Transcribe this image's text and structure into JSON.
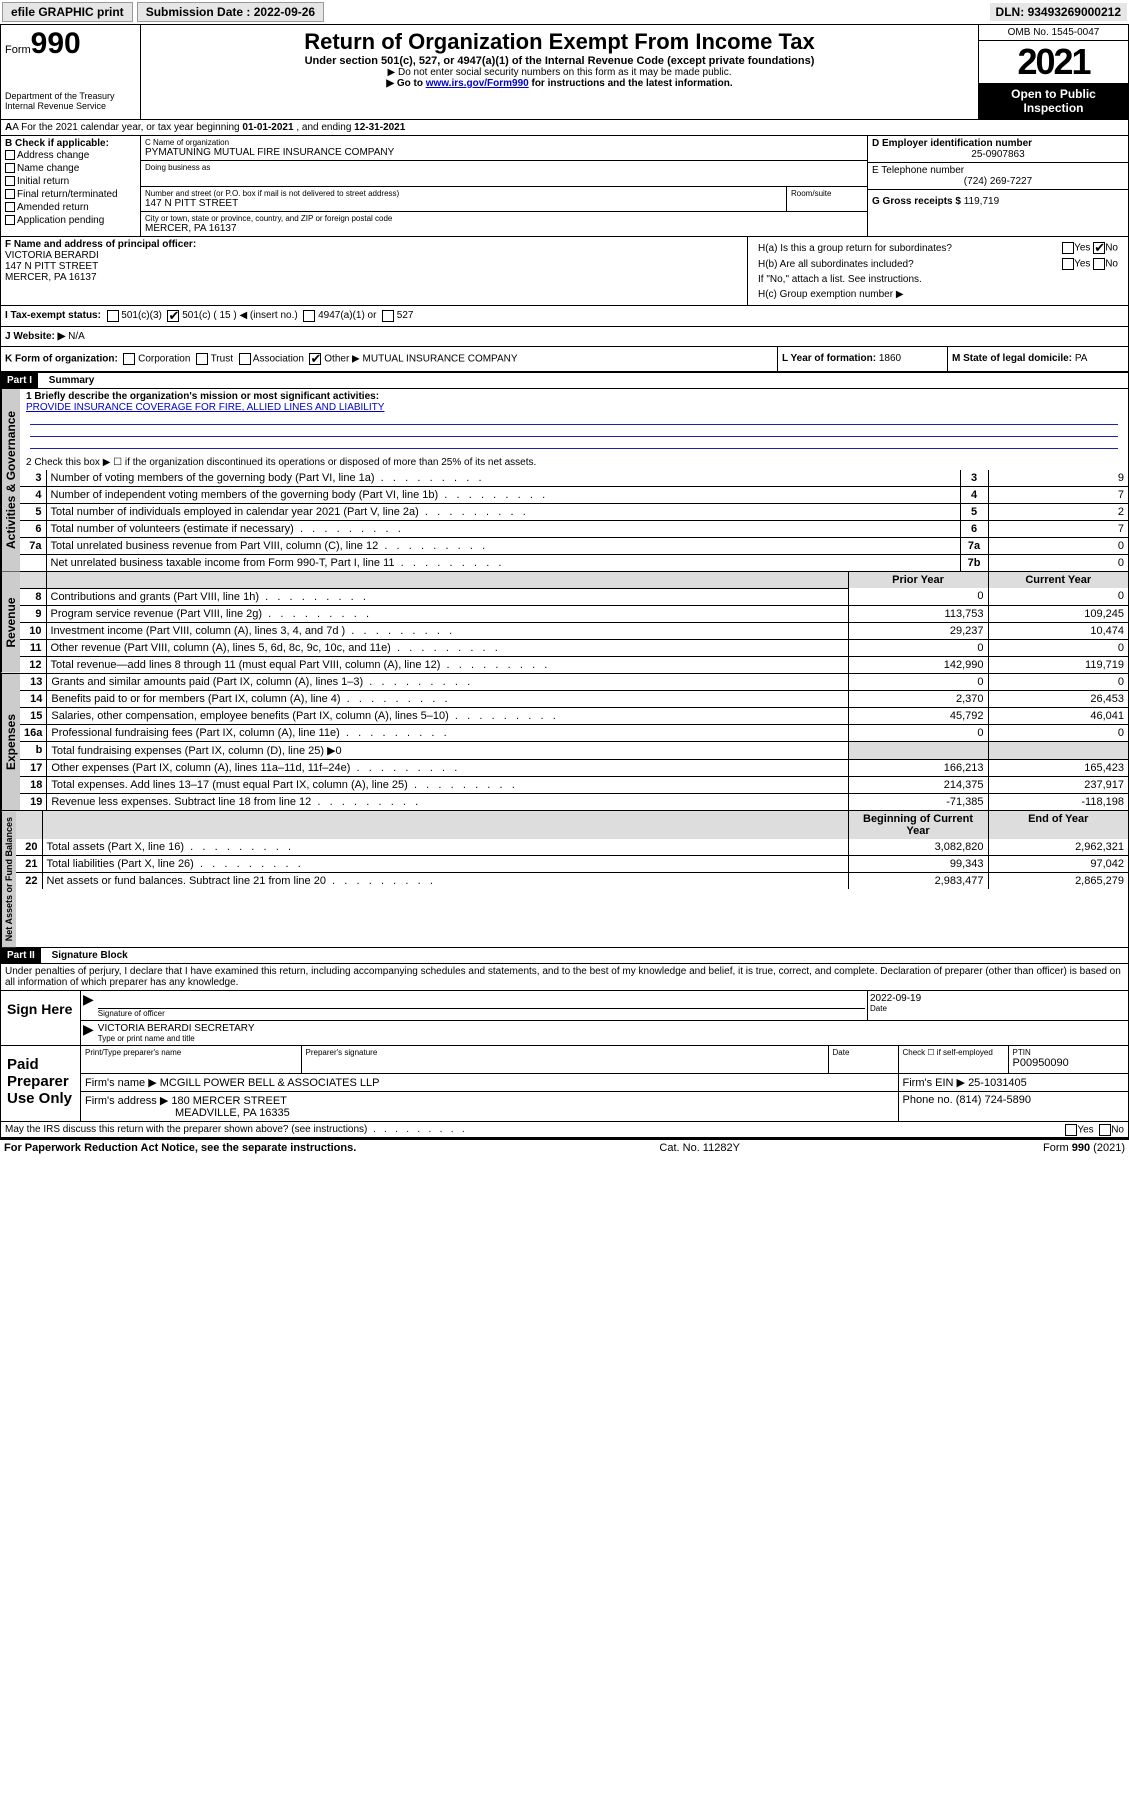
{
  "topbar": {
    "efile": "efile GRAPHIC print",
    "submission_label": "Submission Date :",
    "submission_date": "2022-09-26",
    "dln_label": "DLN:",
    "dln": "93493269000212"
  },
  "header": {
    "form_word": "Form",
    "form_num": "990",
    "dept": "Department of the Treasury\nInternal Revenue Service",
    "title": "Return of Organization Exempt From Income Tax",
    "subtitle": "Under section 501(c), 527, or 4947(a)(1) of the Internal Revenue Code (except private foundations)",
    "note1": "▶ Do not enter social security numbers on this form as it may be made public.",
    "note2_pre": "▶ Go to ",
    "note2_link": "www.irs.gov/Form990",
    "note2_post": " for instructions and the latest information.",
    "omb": "OMB No. 1545-0047",
    "year": "2021",
    "open": "Open to Public Inspection"
  },
  "line_a": {
    "text_pre": "A For the 2021 calendar year, or tax year beginning ",
    "begin": "01-01-2021",
    "mid": " , and ending ",
    "end": "12-31-2021"
  },
  "box_b": {
    "label": "B Check if applicable:",
    "items": [
      "Address change",
      "Name change",
      "Initial return",
      "Final return/terminated",
      "Amended return",
      "Application pending"
    ]
  },
  "box_c": {
    "label": "C Name of organization",
    "name": "PYMATUNING MUTUAL FIRE INSURANCE COMPANY",
    "dba_label": "Doing business as",
    "street_label": "Number and street (or P.O. box if mail is not delivered to street address)",
    "room_label": "Room/suite",
    "street": "147 N PITT STREET",
    "city_label": "City or town, state or province, country, and ZIP or foreign postal code",
    "city": "MERCER, PA  16137"
  },
  "box_d": {
    "label": "D Employer identification number",
    "value": "25-0907863"
  },
  "box_e": {
    "label": "E Telephone number",
    "value": "(724) 269-7227"
  },
  "box_g": {
    "label": "G Gross receipts $",
    "value": "119,719"
  },
  "box_f": {
    "label": "F Name and address of principal officer:",
    "l1": "VICTORIA BERARDI",
    "l2": "147 N PITT STREET",
    "l3": "MERCER, PA  16137"
  },
  "box_h": {
    "a": "H(a)  Is this a group return for subordinates?",
    "b": "H(b)  Are all subordinates included?",
    "note": "If \"No,\" attach a list. See instructions.",
    "c": "H(c)  Group exemption number ▶",
    "yes": "Yes",
    "no": "No"
  },
  "box_i": {
    "label": "I  Tax-exempt status:",
    "o1": "501(c)(3)",
    "o2": "501(c) ( 15 ) ◀ (insert no.)",
    "o3": "4947(a)(1) or",
    "o4": "527"
  },
  "box_j": {
    "label": "J  Website: ▶",
    "value": "N/A"
  },
  "box_k": {
    "label": "K Form of organization:",
    "o1": "Corporation",
    "o2": "Trust",
    "o3": "Association",
    "o4": "Other ▶",
    "other_val": "MUTUAL INSURANCE COMPANY"
  },
  "box_l": {
    "label": "L Year of formation:",
    "value": "1860"
  },
  "box_m": {
    "label": "M State of legal domicile:",
    "value": "PA"
  },
  "part1": {
    "title": "Part I",
    "heading": "Summary",
    "q1a": "1  Briefly describe the organization's mission or most significant activities:",
    "q1b": "PROVIDE INSURANCE COVERAGE FOR FIRE, ALLIED LINES AND LIABILITY",
    "q2": "2  Check this box ▶ ☐  if the organization discontinued its operations or disposed of more than 25% of its net assets.",
    "prior_hdr": "Prior Year",
    "curr_hdr": "Current Year",
    "boy_hdr": "Beginning of Current Year",
    "eoy_hdr": "End of Year"
  },
  "gov_rows": [
    {
      "n": "3",
      "t": "Number of voting members of the governing body (Part VI, line 1a)",
      "box": "3",
      "v": "9"
    },
    {
      "n": "4",
      "t": "Number of independent voting members of the governing body (Part VI, line 1b)",
      "box": "4",
      "v": "7"
    },
    {
      "n": "5",
      "t": "Total number of individuals employed in calendar year 2021 (Part V, line 2a)",
      "box": "5",
      "v": "2"
    },
    {
      "n": "6",
      "t": "Total number of volunteers (estimate if necessary)",
      "box": "6",
      "v": "7"
    },
    {
      "n": "7a",
      "t": "Total unrelated business revenue from Part VIII, column (C), line 12",
      "box": "7a",
      "v": "0"
    },
    {
      "n": "",
      "t": "Net unrelated business taxable income from Form 990-T, Part I, line 11",
      "box": "7b",
      "v": "0"
    }
  ],
  "rev_rows": [
    {
      "n": "8",
      "t": "Contributions and grants (Part VIII, line 1h)",
      "p": "0",
      "c": "0"
    },
    {
      "n": "9",
      "t": "Program service revenue (Part VIII, line 2g)",
      "p": "113,753",
      "c": "109,245"
    },
    {
      "n": "10",
      "t": "Investment income (Part VIII, column (A), lines 3, 4, and 7d )",
      "p": "29,237",
      "c": "10,474"
    },
    {
      "n": "11",
      "t": "Other revenue (Part VIII, column (A), lines 5, 6d, 8c, 9c, 10c, and 11e)",
      "p": "0",
      "c": "0"
    },
    {
      "n": "12",
      "t": "Total revenue—add lines 8 through 11 (must equal Part VIII, column (A), line 12)",
      "p": "142,990",
      "c": "119,719"
    }
  ],
  "exp_rows": [
    {
      "n": "13",
      "t": "Grants and similar amounts paid (Part IX, column (A), lines 1–3)",
      "p": "0",
      "c": "0"
    },
    {
      "n": "14",
      "t": "Benefits paid to or for members (Part IX, column (A), line 4)",
      "p": "2,370",
      "c": "26,453"
    },
    {
      "n": "15",
      "t": "Salaries, other compensation, employee benefits (Part IX, column (A), lines 5–10)",
      "p": "45,792",
      "c": "46,041"
    },
    {
      "n": "16a",
      "t": "Professional fundraising fees (Part IX, column (A), line 11e)",
      "p": "0",
      "c": "0"
    },
    {
      "n": "b",
      "t": "Total fundraising expenses (Part IX, column (D), line 25) ▶0",
      "p": "",
      "c": "",
      "shade": true
    },
    {
      "n": "17",
      "t": "Other expenses (Part IX, column (A), lines 11a–11d, 11f–24e)",
      "p": "166,213",
      "c": "165,423"
    },
    {
      "n": "18",
      "t": "Total expenses. Add lines 13–17 (must equal Part IX, column (A), line 25)",
      "p": "214,375",
      "c": "237,917"
    },
    {
      "n": "19",
      "t": "Revenue less expenses. Subtract line 18 from line 12",
      "p": "-71,385",
      "c": "-118,198"
    }
  ],
  "net_rows": [
    {
      "n": "20",
      "t": "Total assets (Part X, line 16)",
      "p": "3,082,820",
      "c": "2,962,321"
    },
    {
      "n": "21",
      "t": "Total liabilities (Part X, line 26)",
      "p": "99,343",
      "c": "97,042"
    },
    {
      "n": "22",
      "t": "Net assets or fund balances. Subtract line 21 from line 20",
      "p": "2,983,477",
      "c": "2,865,279"
    }
  ],
  "sidetabs": {
    "gov": "Activities & Governance",
    "rev": "Revenue",
    "exp": "Expenses",
    "net": "Net Assets or Fund Balances"
  },
  "part2": {
    "title": "Part II",
    "heading": "Signature Block",
    "decl": "Under penalties of perjury, I declare that I have examined this return, including accompanying schedules and statements, and to the best of my knowledge and belief, it is true, correct, and complete. Declaration of preparer (other than officer) is based on all information of which preparer has any knowledge."
  },
  "sign": {
    "here": "Sign Here",
    "sig_label": "Signature of officer",
    "date": "2022-09-19",
    "date_label": "Date",
    "name": "VICTORIA BERARDI SECRETARY",
    "name_label": "Type or print name and title"
  },
  "paid": {
    "title": "Paid Preparer Use Only",
    "c1": "Print/Type preparer's name",
    "c2": "Preparer's signature",
    "c3": "Date",
    "c4": "Check ☐ if self-employed",
    "c5": "PTIN",
    "ptin": "P00950090",
    "firm_name_l": "Firm's name    ▶",
    "firm_name": "MCGILL POWER BELL & ASSOCIATES LLP",
    "firm_ein_l": "Firm's EIN ▶",
    "firm_ein": "25-1031405",
    "firm_addr_l": "Firm's address ▶",
    "firm_addr1": "180 MERCER STREET",
    "firm_addr2": "MEADVILLE, PA  16335",
    "phone_l": "Phone no.",
    "phone": "(814) 724-5890"
  },
  "footer": {
    "discuss": "May the IRS discuss this return with the preparer shown above? (see instructions)",
    "yes": "Yes",
    "no": "No",
    "pra": "For Paperwork Reduction Act Notice, see the separate instructions.",
    "cat": "Cat. No. 11282Y",
    "form": "Form 990 (2021)"
  },
  "colors": {
    "link": "#0000cc",
    "rule": "#2020a0",
    "shade": "#dddddd",
    "tab": "#cccccc"
  }
}
